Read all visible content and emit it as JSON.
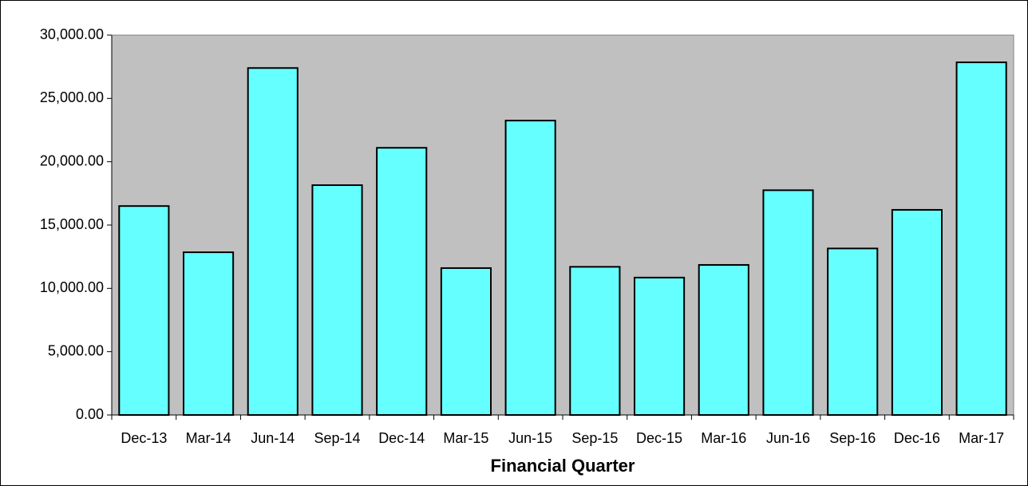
{
  "chart_data": {
    "type": "bar",
    "x_label": "Financial Quarter",
    "categories": [
      "Dec-13",
      "Mar-14",
      "Jun-14",
      "Sep-14",
      "Dec-14",
      "Mar-15",
      "Jun-15",
      "Sep-15",
      "Dec-15",
      "Mar-16",
      "Jun-16",
      "Sep-16",
      "Dec-16",
      "Mar-17"
    ],
    "values": [
      16500,
      12850,
      27400,
      18150,
      21100,
      11600,
      23250,
      11700,
      10850,
      11850,
      17750,
      13150,
      16200,
      27850
    ],
    "color": "#66ffff",
    "plot_background": "#c0c0c0",
    "ylim": [
      0,
      30000
    ],
    "yticks": [
      {
        "value": 0,
        "label": "0.00"
      },
      {
        "value": 5000,
        "label": "5,000.00"
      },
      {
        "value": 10000,
        "label": "10,000.00"
      },
      {
        "value": 15000,
        "label": "15,000.00"
      },
      {
        "value": 20000,
        "label": "20,000.00"
      },
      {
        "value": 25000,
        "label": "25,000.00"
      },
      {
        "value": 30000,
        "label": "30,000.00"
      }
    ]
  }
}
